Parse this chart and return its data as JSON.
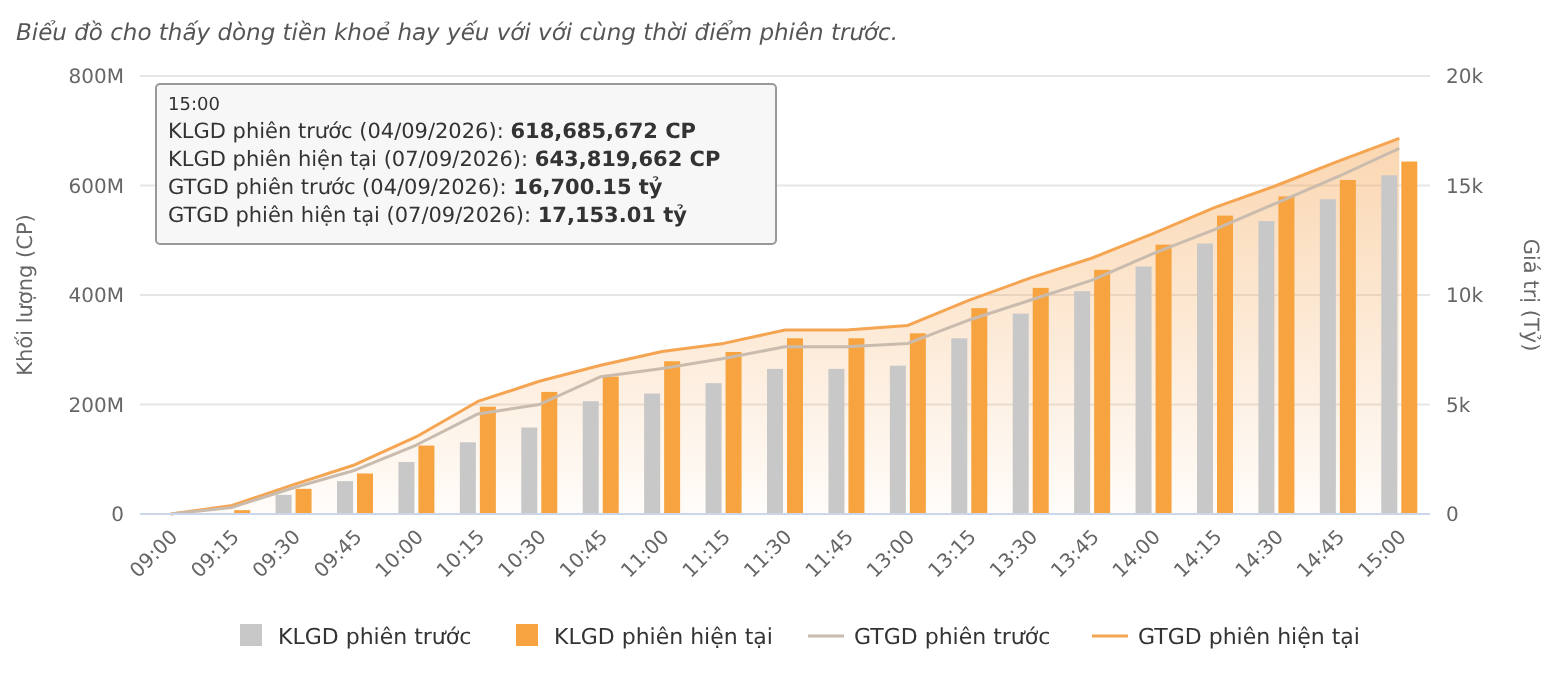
{
  "chart_data": {
    "type": "bar",
    "title": "Biểu đồ cho thấy dòng tiền khoẻ hay yếu với với cùng thời điểm phiên trước.",
    "categories": [
      "09:00",
      "09:15",
      "09:30",
      "09:45",
      "10:00",
      "10:15",
      "10:30",
      "10:45",
      "11:00",
      "11:15",
      "11:30",
      "11:45",
      "13:00",
      "13:15",
      "13:30",
      "13:45",
      "14:00",
      "14:15",
      "14:30",
      "14:45",
      "15:00"
    ],
    "series": [
      {
        "name": "KLGD phiên trước",
        "color": "#c8c8c8",
        "values": [
          0,
          2000000,
          35000000,
          60000000,
          95000000,
          131000000,
          158000000,
          206000000,
          220000000,
          239000000,
          265000000,
          265000000,
          271000000,
          321000000,
          366000000,
          407000000,
          452000000,
          494000000,
          535000000,
          575000000,
          618685672
        ]
      },
      {
        "name": "KLGD phiên hiện tại",
        "color": "#f7a440",
        "values": [
          0,
          7000000,
          46000000,
          74000000,
          125000000,
          196000000,
          223000000,
          251000000,
          279000000,
          296000000,
          321000000,
          321000000,
          330000000,
          376000000,
          413000000,
          446000000,
          492000000,
          545000000,
          580000000,
          610000000,
          643819662
        ]
      },
      {
        "name": "GTGD phiên trước",
        "type": "line",
        "axis": "y2",
        "color": "#c9bcae",
        "values": [
          0,
          300,
          1200,
          2000,
          3150,
          4570,
          5000,
          6270,
          6640,
          7100,
          7640,
          7640,
          7790,
          8860,
          9770,
          10680,
          11900,
          13000,
          14200,
          15400,
          16700.15
        ]
      },
      {
        "name": "GTGD phiên hiện tại",
        "type": "area",
        "axis": "y2",
        "color": "#f5a552",
        "values": [
          0,
          390,
          1340,
          2250,
          3530,
          5140,
          6060,
          6790,
          7420,
          7790,
          8400,
          8400,
          8610,
          9770,
          10780,
          11690,
          12810,
          14000,
          15000,
          16100,
          17153.01
        ]
      }
    ],
    "ylabel": "Khối lượng (CP)",
    "y2label": "Giá trị (Tỷ)",
    "ylim": [
      0,
      800000000
    ],
    "yticks": [
      0,
      {
        "value": 200000000,
        "label": "200M"
      },
      {
        "value": 400000000,
        "label": "400M"
      },
      {
        "value": 600000000,
        "label": "600M"
      },
      {
        "value": 800000000,
        "label": "800M"
      }
    ],
    "y2lim": [
      0,
      20000
    ],
    "y2ticks": [
      0,
      {
        "value": 5000,
        "label": "5k"
      },
      {
        "value": 10000,
        "label": "10k"
      },
      {
        "value": 15000,
        "label": "15k"
      },
      {
        "value": 20000,
        "label": "20k"
      }
    ],
    "grid": "y",
    "legend": "bottom",
    "marker": "none",
    "annotations": [
      "15:00",
      "KLGD phiên trước (04/09/2026): 618,685,672 CP",
      "KLGD phiên hiện tại (07/09/2026): 643,819,662 CP",
      "GTGD phiên trước (04/09/2026): 16,700.15 tỷ",
      "GTGD phiên hiện tại (07/09/2026): 17,153.01 tỷ"
    ]
  }
}
